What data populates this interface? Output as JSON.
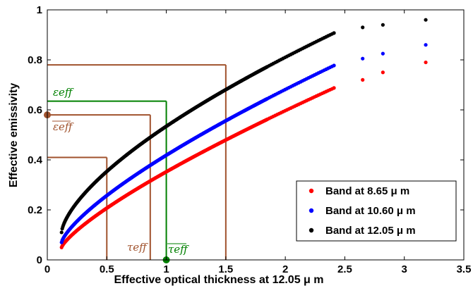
{
  "chart_data": {
    "type": "scatter",
    "title": "",
    "xlabel": "Effective optical thickness at 12.05 μ m",
    "ylabel": "Effective emissivity",
    "xlim": [
      0,
      3.5
    ],
    "ylim": [
      0,
      1
    ],
    "xticks": [
      "0",
      "0.5",
      "1",
      "1.5",
      "2",
      "2.5",
      "3",
      "3.5"
    ],
    "yticks": [
      "0",
      "0.2",
      "0.4",
      "0.6",
      "0.8",
      "1"
    ],
    "grid": false,
    "legend_position": "bottom-right",
    "series": [
      {
        "name": "Band at 8.65 μ m",
        "color": "#ff0000",
        "curve": {
          "a": 0.152,
          "b": 0.82,
          "x_start": 0.12,
          "x_end": 2.42,
          "isolated_x": [
            2.65,
            2.82,
            3.18
          ]
        }
      },
      {
        "name": "Band at 10.60 μ m",
        "color": "#0000ff",
        "curve": {
          "a": 0.195,
          "b": 0.81,
          "x_start": 0.12,
          "x_end": 2.42,
          "isolated_x": [
            2.65,
            2.82,
            3.18
          ]
        }
      },
      {
        "name": "Band at 12.05 μ m",
        "color": "#000000",
        "curve": {
          "a": 0.225,
          "b": 0.84,
          "x_start": 0.12,
          "x_end": 2.42,
          "isolated_x": [
            2.65,
            2.82,
            3.18
          ]
        }
      }
    ],
    "annotations": {
      "brown_color": "#a0522d",
      "green_color": "#008000",
      "brown_lines": [
        {
          "x": 0.5,
          "y": 0.41
        },
        {
          "x": 0.865,
          "y": 0.58
        },
        {
          "x": 1.5,
          "y": 0.78
        }
      ],
      "green_line": {
        "x": 1.0,
        "y": 0.635
      },
      "brown_marker": {
        "x": 0.0,
        "y": 0.58
      },
      "green_marker": {
        "x": 1.0,
        "y": 0.0
      },
      "labels": {
        "eps_eff": "εeff",
        "eps_eff_bar": "εeff",
        "tau_eff": "τeff",
        "tau_eff_bar": "τeff"
      }
    }
  }
}
